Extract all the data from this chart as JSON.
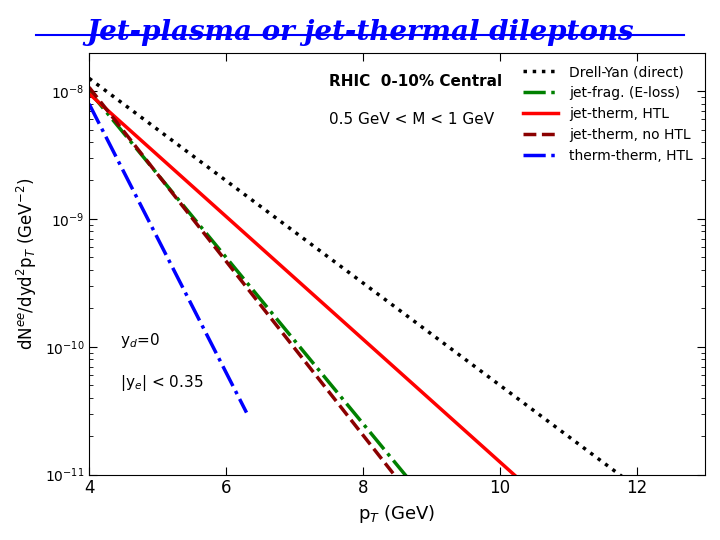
{
  "title": "Jet-plasma or jet-thermal dileptons",
  "title_color": "#0000FF",
  "title_fontsize": 20,
  "xlabel": "p$_T$ (GeV)",
  "ylabel": "dN$^{ee}$/dyd$^2$p$_T$ (GeV$^{-2}$)",
  "xlim": [
    4,
    13
  ],
  "ylim_log_min": -11,
  "ylim_log_max": -7.7,
  "annotation_rhic": "RHIC  0-10% Central",
  "annotation_mass": "0.5 GeV < M < 1 GeV",
  "annotation_yd": "y$_d$=0",
  "annotation_ye": "|y$_e$| < 0.35",
  "xticks": [
    4,
    6,
    8,
    10,
    12
  ],
  "drell_yan": {
    "slope": -0.4,
    "intercept": -6.3,
    "color": "black",
    "ls": "dotted",
    "lw": 2.5
  },
  "jet_frag": {
    "slope": -0.65,
    "intercept": -5.4,
    "color": "green",
    "ls": "dashdot",
    "lw": 2.5
  },
  "jet_therm_htl": {
    "slope": -0.48,
    "intercept": -6.1,
    "color": "red",
    "ls": "solid",
    "lw": 2.5
  },
  "jet_therm_no": {
    "slope": -0.68,
    "intercept": -5.25,
    "color": "#8B0000",
    "ls": "dashed",
    "lw": 2.5
  },
  "therm_therm": {
    "slope": -1.05,
    "intercept": -3.9,
    "color": "blue",
    "ls": "dashdot",
    "lw": 2.5,
    "xmax": 6.3
  },
  "legend_labels": [
    "Drell-Yan (direct)",
    "jet-frag. (E-loss)",
    "jet-therm, HTL",
    "jet-therm, no HTL",
    "therm-therm, HTL"
  ],
  "legend_colors": [
    "black",
    "green",
    "red",
    "#8B0000",
    "blue"
  ],
  "legend_ls": [
    "dotted",
    "dashdot",
    "solid",
    "dashed",
    "dashdot"
  ]
}
